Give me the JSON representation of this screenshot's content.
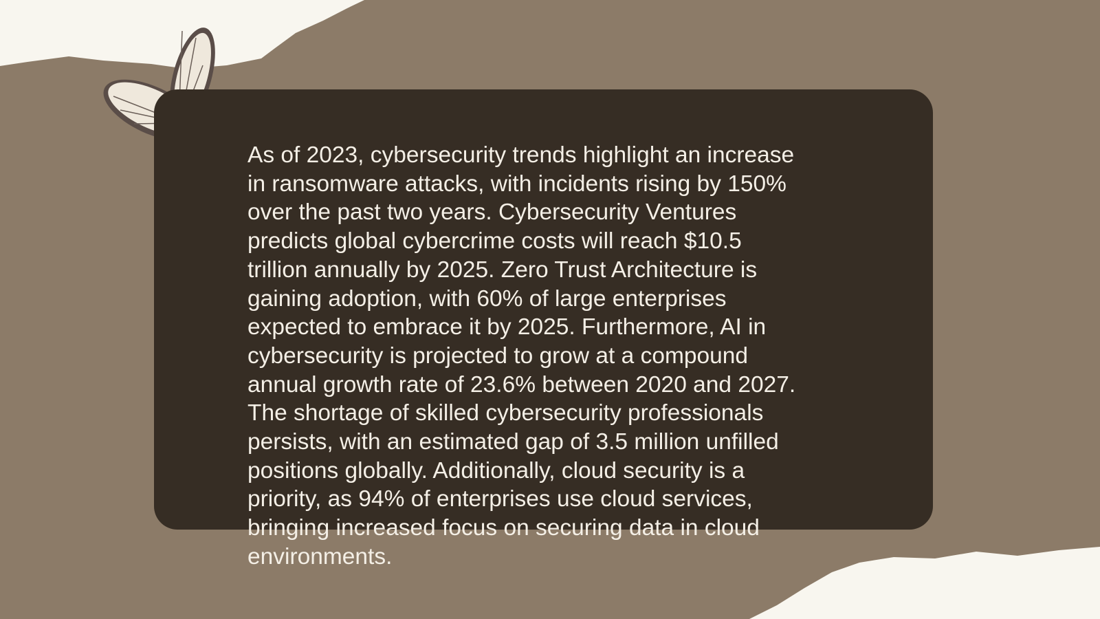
{
  "body": {
    "lines": [
      "As of 2023, cybersecurity trends highlight an increase",
      "in ransomware attacks, with incidents rising by 150%",
      "over the past two years. Cybersecurity Ventures",
      "predicts global cybercrime costs will reach $10.5",
      "trillion annually by 2025. Zero Trust Architecture is",
      "gaining adoption, with 60% of large enterprises",
      "expected to embrace it by 2025. Furthermore, AI in",
      "cybersecurity is projected to grow at a compound",
      "annual growth rate of 23.6% between 2020 and 2027.",
      "The shortage of skilled cybersecurity professionals",
      "persists, with an estimated gap of 3.5 million unfilled",
      "positions globally. Additionally, cloud security is a",
      "priority, as 94% of enterprises use cloud services,",
      "bringing increased focus on securing data in cloud",
      "environments."
    ]
  }
}
